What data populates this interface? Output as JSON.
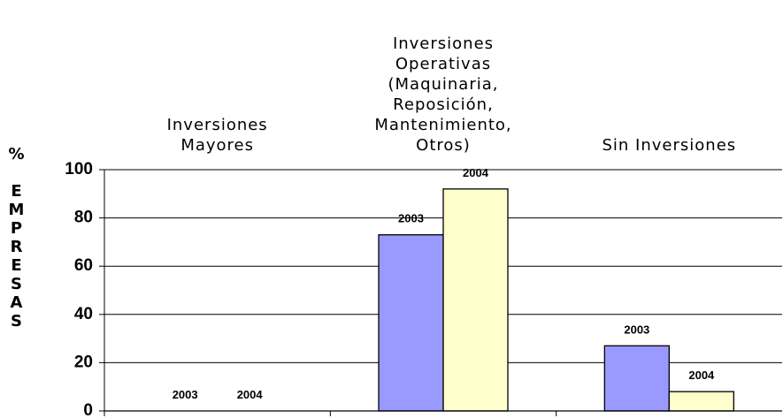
{
  "chart_data": {
    "type": "bar",
    "y_label": "% EMPRESAS",
    "categories": [
      "Inversiones\nMayores",
      "Inversiones\nOperativas\n(Maquinaria,\nReposición,\nMantenimiento,\nOtros)",
      "Sin Inversiones"
    ],
    "series": [
      {
        "name": "2003",
        "color": "#9999ff",
        "values": [
          0,
          73,
          27
        ]
      },
      {
        "name": "2004",
        "color": "#ffffcc",
        "values": [
          0,
          92,
          8
        ]
      }
    ],
    "ylim": [
      0,
      100
    ],
    "yticks": [
      0,
      20,
      40,
      60,
      80,
      100
    ],
    "grid": true
  }
}
